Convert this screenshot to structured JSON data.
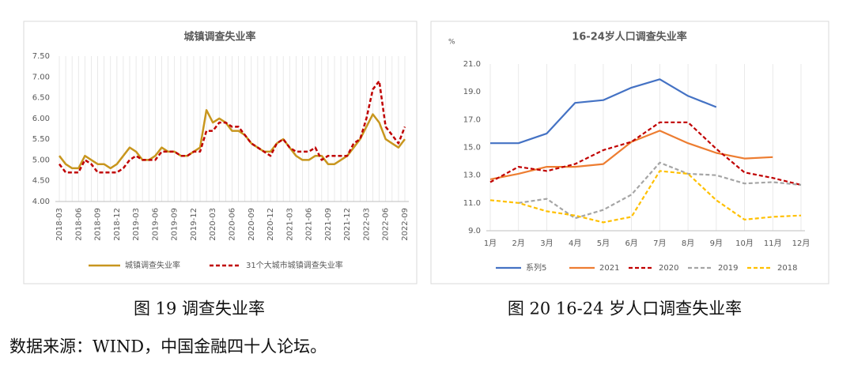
{
  "chart_data": [
    {
      "type": "line",
      "title": "城镇调查失业率",
      "categories": [
        "2018-03",
        null,
        null,
        "2018-06",
        null,
        null,
        "2018-09",
        null,
        null,
        "2018-12",
        null,
        null,
        "2019-03",
        null,
        null,
        "2019-06",
        null,
        null,
        "2019-09",
        null,
        null,
        "2019-12",
        null,
        null,
        "2020-03",
        null,
        null,
        "2020-06",
        null,
        null,
        "2020-09",
        null,
        null,
        "2020-12",
        null,
        null,
        "2021-03",
        null,
        null,
        "2021-06",
        null,
        null,
        "2021-09",
        null,
        null,
        "2021-12",
        null,
        null,
        "2022-03",
        null,
        null,
        "2022-06",
        null,
        null,
        "2022-09"
      ],
      "series": [
        {
          "name": "城镇调查失业率",
          "color": "#c8961e",
          "dash": false,
          "values": [
            5.1,
            4.9,
            4.8,
            4.8,
            5.1,
            5.0,
            4.9,
            4.9,
            4.8,
            4.9,
            5.1,
            5.3,
            5.2,
            5.0,
            5.0,
            5.1,
            5.3,
            5.2,
            5.2,
            5.1,
            5.1,
            5.2,
            5.3,
            6.2,
            5.9,
            6.0,
            5.9,
            5.7,
            5.7,
            5.6,
            5.4,
            5.3,
            5.2,
            5.2,
            5.4,
            5.5,
            5.3,
            5.1,
            5.0,
            5.0,
            5.1,
            5.1,
            4.9,
            4.9,
            5.0,
            5.1,
            5.3,
            5.5,
            5.8,
            6.1,
            5.9,
            5.5,
            5.4,
            5.3,
            5.5
          ]
        },
        {
          "name": "31个大城市城镇调查失业率",
          "color": "#c00000",
          "dash": true,
          "values": [
            4.9,
            4.7,
            4.7,
            4.7,
            5.0,
            4.9,
            4.7,
            4.7,
            4.7,
            4.7,
            4.8,
            5.0,
            5.1,
            5.0,
            5.0,
            5.0,
            5.2,
            5.2,
            5.2,
            5.1,
            5.1,
            5.2,
            5.2,
            5.7,
            5.7,
            5.9,
            5.9,
            5.8,
            5.8,
            5.6,
            5.4,
            5.3,
            5.2,
            5.1,
            5.4,
            5.5,
            5.3,
            5.2,
            5.2,
            5.2,
            5.3,
            5.0,
            5.1,
            5.1,
            5.1,
            5.1,
            5.4,
            5.5,
            6.0,
            6.7,
            6.9,
            5.8,
            5.6,
            5.4,
            5.8
          ]
        }
      ],
      "ylim": [
        4,
        7.5
      ],
      "yticks": [
        {
          "value": 4,
          "label": "4.00"
        },
        {
          "value": 4.5,
          "label": "4.50"
        },
        {
          "value": 5,
          "label": "5.00"
        },
        {
          "value": 5.5,
          "label": "5.50"
        },
        {
          "value": 6,
          "label": "6.00"
        },
        {
          "value": 6.5,
          "label": "6.50"
        },
        {
          "value": 7,
          "label": "7.00"
        },
        {
          "value": 7.5,
          "label": "7.50"
        }
      ],
      "legend": "bottom"
    },
    {
      "type": "line",
      "title": "16-24岁人口调查失业率",
      "ylabel": "%",
      "categories": [
        "1月",
        "2月",
        "3月",
        "4月",
        "5月",
        "6月",
        "7月",
        "8月",
        "9月",
        "10月",
        "11月",
        "12月"
      ],
      "series": [
        {
          "name": "系列5",
          "color": "#4472c4",
          "dash": false,
          "values": [
            15.3,
            15.3,
            16.0,
            18.2,
            18.4,
            19.3,
            19.9,
            18.7,
            17.9,
            null,
            null,
            null
          ]
        },
        {
          "name": "2021",
          "color": "#ed7d31",
          "dash": false,
          "values": [
            12.7,
            13.1,
            13.6,
            13.6,
            13.8,
            15.4,
            16.2,
            15.3,
            14.6,
            14.2,
            14.3,
            null
          ]
        },
        {
          "name": "2020",
          "color": "#c00000",
          "dash": true,
          "values": [
            12.5,
            13.6,
            13.3,
            13.8,
            14.8,
            15.4,
            16.8,
            16.8,
            14.9,
            13.2,
            12.8,
            12.3
          ]
        },
        {
          "name": "2019",
          "color": "#a5a5a5",
          "dash": true,
          "values": [
            null,
            11.0,
            11.3,
            9.9,
            10.5,
            11.6,
            13.9,
            13.1,
            13.0,
            12.4,
            12.5,
            12.3
          ]
        },
        {
          "name": "2018",
          "color": "#ffc000",
          "dash": true,
          "values": [
            11.2,
            11.0,
            10.4,
            10.1,
            9.6,
            10.0,
            13.3,
            13.1,
            11.2,
            9.8,
            10.0,
            10.1
          ]
        }
      ],
      "ylim": [
        9,
        21
      ],
      "yticks": [
        {
          "value": 9,
          "label": "9.0"
        },
        {
          "value": 11,
          "label": "11.0"
        },
        {
          "value": 13,
          "label": "13.0"
        },
        {
          "value": 15,
          "label": "15.0"
        },
        {
          "value": 17,
          "label": "17.0"
        },
        {
          "value": 19,
          "label": "19.0"
        },
        {
          "value": 21,
          "label": "21.0"
        }
      ],
      "legend": "bottom"
    }
  ],
  "captions": [
    "图 19  调查失业率",
    "图 20 16-24 岁人口调查失业率"
  ],
  "source": "数据来源：WIND，中国金融四十人论坛。"
}
